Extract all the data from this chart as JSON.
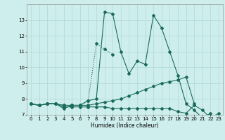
{
  "xlabel": "Humidex (Indice chaleur)",
  "x_values": [
    0,
    1,
    2,
    3,
    4,
    5,
    6,
    7,
    8,
    9,
    10,
    11,
    12,
    13,
    14,
    15,
    16,
    17,
    18,
    19,
    20,
    21,
    22,
    23
  ],
  "series1": [
    7.7,
    7.6,
    7.7,
    7.7,
    7.4,
    7.6,
    7.6,
    7.9,
    8.0,
    13.5,
    13.4,
    11.0,
    9.6,
    10.4,
    10.2,
    13.3,
    12.5,
    11.0,
    9.5,
    7.7,
    7.3,
    6.8,
    7.1,
    null
  ],
  "series2_x": [
    0,
    1,
    2,
    3,
    4,
    5,
    6,
    7,
    8,
    9,
    10
  ],
  "series2_y": [
    7.7,
    7.6,
    7.7,
    7.7,
    7.6,
    7.6,
    7.6,
    7.9,
    11.5,
    11.15,
    10.8
  ],
  "series3_x": [
    0,
    1,
    2,
    3,
    4,
    5,
    6,
    7,
    8,
    9,
    10,
    11,
    12,
    13,
    14,
    15,
    16,
    17,
    18,
    19,
    20
  ],
  "series3_y": [
    7.7,
    7.6,
    7.7,
    7.7,
    7.6,
    7.6,
    7.6,
    7.6,
    7.7,
    7.8,
    7.9,
    8.0,
    8.2,
    8.4,
    8.6,
    8.8,
    9.0,
    9.1,
    9.2,
    9.4,
    7.7
  ],
  "series4_x": [
    0,
    1,
    2,
    3,
    4,
    5,
    6,
    7,
    8,
    9,
    10,
    11,
    12,
    13,
    14,
    15,
    16,
    17,
    18,
    19,
    20,
    21,
    22,
    23
  ],
  "series4_y": [
    7.7,
    7.6,
    7.7,
    7.7,
    7.5,
    7.5,
    7.5,
    7.5,
    7.5,
    7.5,
    7.4,
    7.4,
    7.4,
    7.4,
    7.4,
    7.4,
    7.4,
    7.4,
    7.2,
    7.1,
    7.6,
    7.3,
    6.8,
    7.1
  ],
  "line_color": "#1a6b5a",
  "bg_color": "#ceeeed",
  "grid_color": "#aed8d6",
  "ylim": [
    7.0,
    14.0
  ],
  "yticks": [
    7,
    8,
    9,
    10,
    11,
    12,
    13
  ],
  "xticks": [
    0,
    1,
    2,
    3,
    4,
    5,
    6,
    7,
    8,
    9,
    10,
    11,
    12,
    13,
    14,
    15,
    16,
    17,
    18,
    19,
    20,
    21,
    22,
    23
  ]
}
